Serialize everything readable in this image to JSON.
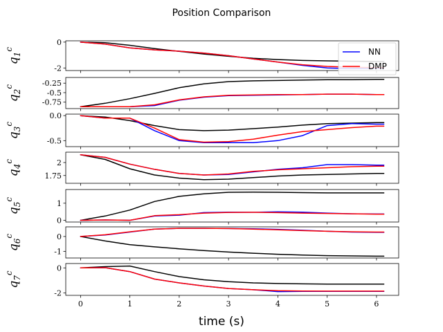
{
  "figure": {
    "title": "Position Comparison",
    "xlabel": "time (s)"
  },
  "legend": {
    "placement": "top-right of first subplot",
    "entries": [
      {
        "name": "NN",
        "color": "#0000ff"
      },
      {
        "name": "DMP",
        "color": "#ff0000"
      }
    ]
  },
  "colors": {
    "nn": "#0000ff",
    "dmp": "#ff0000",
    "reference": "#000000"
  },
  "chart_data": [
    {
      "type": "line",
      "ylabel": "q",
      "ylabel_sub": "1",
      "ylabel_sup": "c",
      "xlim": [
        -0.3,
        6.45
      ],
      "ylim": [
        -2.2,
        0.1
      ],
      "xticks": [
        0,
        1,
        2,
        3,
        4,
        5,
        6
      ],
      "yticks": [
        0,
        -2
      ],
      "x": [
        0,
        0.5,
        1,
        1.5,
        2,
        2.5,
        3,
        3.5,
        4,
        4.5,
        5,
        5.5,
        6,
        6.15
      ],
      "series": [
        {
          "key": "ref",
          "values": [
            0,
            -0.05,
            -0.25,
            -0.5,
            -0.72,
            -0.92,
            -1.1,
            -1.25,
            -1.35,
            -1.42,
            -1.45,
            -1.48,
            -1.5,
            -1.5
          ]
        },
        {
          "key": "nn",
          "values": [
            0,
            -0.15,
            -0.45,
            -0.6,
            -0.7,
            -0.85,
            -1.05,
            -1.3,
            -1.55,
            -1.8,
            -2.0,
            -2.05,
            -2.02,
            -2.02
          ]
        },
        {
          "key": "dmp",
          "values": [
            0,
            -0.15,
            -0.45,
            -0.6,
            -0.7,
            -0.85,
            -1.05,
            -1.3,
            -1.55,
            -1.75,
            -1.88,
            -1.95,
            -1.97,
            -1.98
          ]
        }
      ]
    },
    {
      "type": "line",
      "ylabel": "q",
      "ylabel_sub": "2",
      "ylabel_sup": "c",
      "xlim": [
        -0.3,
        6.45
      ],
      "ylim": [
        -0.92,
        -0.1
      ],
      "xticks": [
        0,
        1,
        2,
        3,
        4,
        5,
        6
      ],
      "yticks": [
        -0.25,
        -0.5,
        -0.75
      ],
      "x": [
        0,
        0.5,
        1,
        1.5,
        2,
        2.5,
        3,
        3.5,
        4,
        4.5,
        5,
        5.5,
        6,
        6.15
      ],
      "series": [
        {
          "key": "ref",
          "values": [
            -0.87,
            -0.78,
            -0.66,
            -0.52,
            -0.37,
            -0.27,
            -0.21,
            -0.19,
            -0.18,
            -0.17,
            -0.16,
            -0.16,
            -0.15,
            -0.15
          ]
        },
        {
          "key": "nn",
          "values": [
            -0.87,
            -0.87,
            -0.87,
            -0.84,
            -0.7,
            -0.62,
            -0.58,
            -0.57,
            -0.56,
            -0.55,
            -0.54,
            -0.54,
            -0.55,
            -0.55
          ]
        },
        {
          "key": "dmp",
          "values": [
            -0.87,
            -0.87,
            -0.87,
            -0.82,
            -0.69,
            -0.61,
            -0.57,
            -0.56,
            -0.55,
            -0.55,
            -0.54,
            -0.54,
            -0.55,
            -0.55
          ]
        }
      ]
    },
    {
      "type": "line",
      "ylabel": "q",
      "ylabel_sub": "3",
      "ylabel_sup": "c",
      "xlim": [
        -0.3,
        6.45
      ],
      "ylim": [
        -0.62,
        0.03
      ],
      "xticks": [
        0,
        1,
        2,
        3,
        4,
        5,
        6
      ],
      "yticks": [
        0.0,
        -0.5
      ],
      "x": [
        0,
        0.5,
        1,
        1.5,
        2,
        2.5,
        3,
        3.5,
        4,
        4.5,
        5,
        5.5,
        6,
        6.15
      ],
      "series": [
        {
          "key": "ref",
          "values": [
            0,
            -0.03,
            -0.1,
            -0.2,
            -0.28,
            -0.3,
            -0.29,
            -0.26,
            -0.23,
            -0.19,
            -0.16,
            -0.15,
            -0.14,
            -0.14
          ]
        },
        {
          "key": "nn",
          "values": [
            0,
            -0.05,
            -0.05,
            -0.3,
            -0.5,
            -0.54,
            -0.54,
            -0.54,
            -0.5,
            -0.4,
            -0.2,
            -0.16,
            -0.17,
            -0.17
          ]
        },
        {
          "key": "dmp",
          "values": [
            0,
            -0.05,
            -0.05,
            -0.25,
            -0.48,
            -0.53,
            -0.52,
            -0.47,
            -0.39,
            -0.32,
            -0.28,
            -0.24,
            -0.21,
            -0.21
          ]
        }
      ]
    },
    {
      "type": "line",
      "ylabel": "q",
      "ylabel_sub": "4",
      "ylabel_sup": "c",
      "xlim": [
        -0.3,
        6.45
      ],
      "ylim": [
        1.6,
        2.2
      ],
      "xticks": [
        0,
        1,
        2,
        3,
        4,
        5,
        6
      ],
      "yticks": [
        2.0,
        1.75
      ],
      "x": [
        0,
        0.5,
        1,
        1.5,
        2,
        2.5,
        3,
        3.5,
        4,
        4.5,
        5,
        5.5,
        6,
        6.15
      ],
      "series": [
        {
          "key": "ref",
          "values": [
            2.15,
            2.06,
            1.88,
            1.76,
            1.7,
            1.67,
            1.68,
            1.71,
            1.74,
            1.76,
            1.77,
            1.78,
            1.79,
            1.79
          ]
        },
        {
          "key": "nn",
          "values": [
            2.15,
            2.1,
            1.97,
            1.87,
            1.79,
            1.76,
            1.77,
            1.82,
            1.87,
            1.9,
            1.96,
            1.96,
            1.95,
            1.95
          ]
        },
        {
          "key": "dmp",
          "values": [
            2.15,
            2.1,
            1.97,
            1.87,
            1.79,
            1.76,
            1.78,
            1.83,
            1.86,
            1.88,
            1.9,
            1.92,
            1.93,
            1.93
          ]
        }
      ]
    },
    {
      "type": "line",
      "ylabel": "q",
      "ylabel_sub": "5",
      "ylabel_sup": "c",
      "xlim": [
        -0.3,
        6.45
      ],
      "ylim": [
        -0.1,
        1.8
      ],
      "xticks": [
        0,
        1,
        2,
        3,
        4,
        5,
        6
      ],
      "yticks": [
        1,
        0
      ],
      "x": [
        0,
        0.5,
        1,
        1.5,
        2,
        2.5,
        3,
        3.5,
        4,
        4.5,
        5,
        5.5,
        6,
        6.15
      ],
      "series": [
        {
          "key": "ref",
          "values": [
            0,
            0.25,
            0.6,
            1.1,
            1.4,
            1.55,
            1.64,
            1.65,
            1.64,
            1.62,
            1.6,
            1.6,
            1.6,
            1.6
          ]
        },
        {
          "key": "nn",
          "values": [
            0,
            0.02,
            0.0,
            0.25,
            0.3,
            0.45,
            0.48,
            0.47,
            0.5,
            0.48,
            0.42,
            0.38,
            0.37,
            0.37
          ]
        },
        {
          "key": "dmp",
          "values": [
            0,
            0.02,
            0.0,
            0.27,
            0.33,
            0.42,
            0.46,
            0.47,
            0.45,
            0.42,
            0.4,
            0.38,
            0.36,
            0.36
          ]
        }
      ]
    },
    {
      "type": "line",
      "ylabel": "q",
      "ylabel_sub": "6",
      "ylabel_sup": "c",
      "xlim": [
        -0.3,
        6.45
      ],
      "ylim": [
        -1.45,
        0.65
      ],
      "xticks": [
        0,
        1,
        2,
        3,
        4,
        5,
        6
      ],
      "yticks": [
        0,
        -1
      ],
      "x": [
        0,
        0.5,
        1,
        1.5,
        2,
        2.5,
        3,
        3.5,
        4,
        4.5,
        5,
        5.5,
        6,
        6.15
      ],
      "series": [
        {
          "key": "ref",
          "values": [
            0,
            -0.3,
            -0.55,
            -0.7,
            -0.83,
            -0.95,
            -1.05,
            -1.13,
            -1.2,
            -1.25,
            -1.29,
            -1.31,
            -1.33,
            -1.33
          ]
        },
        {
          "key": "nn",
          "values": [
            0,
            0.1,
            0.3,
            0.5,
            0.55,
            0.55,
            0.54,
            0.52,
            0.48,
            0.42,
            0.35,
            0.3,
            0.28,
            0.28
          ]
        },
        {
          "key": "dmp",
          "values": [
            0,
            0.12,
            0.32,
            0.5,
            0.55,
            0.55,
            0.54,
            0.5,
            0.45,
            0.4,
            0.35,
            0.32,
            0.3,
            0.3
          ]
        }
      ]
    },
    {
      "type": "line",
      "ylabel": "q",
      "ylabel_sub": "7",
      "ylabel_sup": "c",
      "xlim": [
        -0.3,
        6.45
      ],
      "ylim": [
        -2.2,
        0.35
      ],
      "xticks": [
        0,
        1,
        2,
        3,
        4,
        5,
        6
      ],
      "yticks": [
        0,
        -2
      ],
      "x": [
        0,
        0.5,
        1,
        1.5,
        2,
        2.5,
        3,
        3.5,
        4,
        4.5,
        5,
        5.5,
        6,
        6.15
      ],
      "series": [
        {
          "key": "ref",
          "values": [
            0,
            0.1,
            0.15,
            -0.3,
            -0.7,
            -0.95,
            -1.1,
            -1.2,
            -1.25,
            -1.28,
            -1.3,
            -1.3,
            -1.3,
            -1.3
          ]
        },
        {
          "key": "nn",
          "values": [
            0,
            0.02,
            -0.3,
            -0.9,
            -1.2,
            -1.45,
            -1.65,
            -1.75,
            -1.9,
            -1.88,
            -1.88,
            -1.88,
            -1.88,
            -1.88
          ]
        },
        {
          "key": "dmp",
          "values": [
            0,
            0.02,
            -0.3,
            -0.9,
            -1.2,
            -1.45,
            -1.65,
            -1.75,
            -1.83,
            -1.85,
            -1.86,
            -1.86,
            -1.86,
            -1.86
          ]
        }
      ]
    }
  ]
}
